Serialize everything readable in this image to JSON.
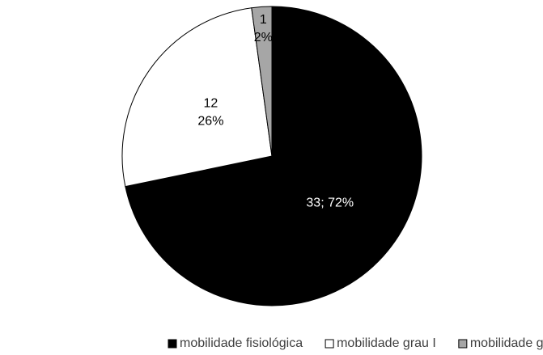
{
  "chart_data": {
    "type": "pie",
    "categories": [
      "mobilidade fisiológica",
      "mobilidade grau I",
      "mobilidade grau II"
    ],
    "values": [
      33,
      12,
      1
    ],
    "value_labels": [
      [
        "33; 72%"
      ],
      [
        "12",
        "26%"
      ],
      [
        "1",
        "2%"
      ]
    ],
    "colors": [
      "#000000",
      "#ffffff",
      "#a6a6a6"
    ],
    "legend": "bottom"
  }
}
